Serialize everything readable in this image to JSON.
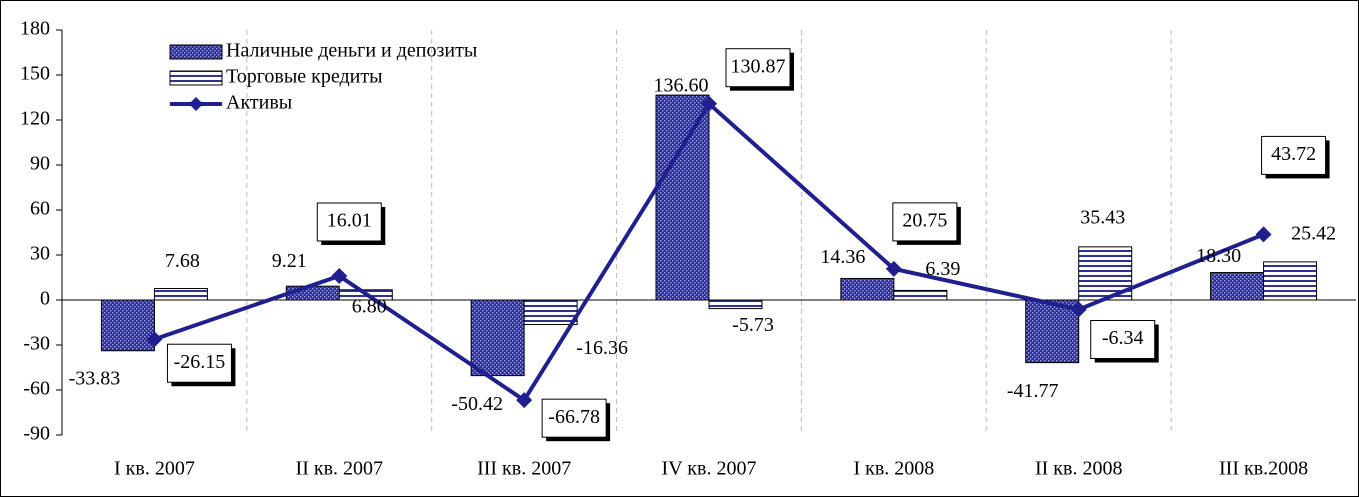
{
  "chart_data": {
    "type": "bar",
    "categories": [
      "I кв. 2007",
      "II кв. 2007",
      "III кв. 2007",
      "IV кв. 2007",
      "I кв. 2008",
      "II кв. 2008",
      "III кв.2008"
    ],
    "series": [
      {
        "name": "Наличные деньги и депозиты",
        "color": "#2e3192",
        "type": "bar",
        "values": [
          -33.83,
          9.21,
          -50.42,
          136.6,
          14.36,
          -41.77,
          18.3
        ],
        "value_labels": [
          "-33.83",
          "9.21",
          "-50.42",
          "136.60",
          "14.36",
          "-41.77",
          "18.30"
        ]
      },
      {
        "name": "Торговые кредиты",
        "color": "#2e3192",
        "type": "bar",
        "values": [
          7.68,
          6.8,
          -16.36,
          -5.73,
          6.39,
          35.43,
          25.42
        ],
        "value_labels": [
          "7.68",
          "6.80",
          "-16.36",
          "-5.73",
          "6.39",
          "35.43",
          "25.42"
        ]
      },
      {
        "name": "Активы",
        "color": "#1f1f8f",
        "type": "line",
        "values": [
          -26.15,
          16.01,
          -66.78,
          130.87,
          20.75,
          -6.34,
          43.72
        ],
        "value_labels": [
          "-26.15",
          "16.01",
          "-66.78",
          "130.87",
          "20.75",
          "-6.34",
          "43.72"
        ]
      }
    ],
    "ylim": [
      -90,
      180
    ],
    "yticks": [
      -90,
      -60,
      -30,
      0,
      30,
      60,
      90,
      120,
      150,
      180
    ]
  }
}
